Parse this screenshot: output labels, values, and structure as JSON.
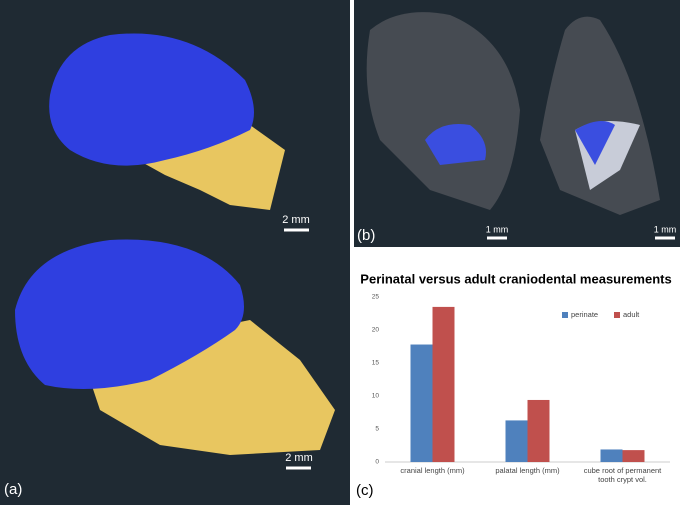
{
  "panels": [
    {
      "label": "(a)",
      "scale_bars": [
        "2 mm",
        "2 mm"
      ]
    },
    {
      "label": "(b)",
      "scale_bars": [
        "1 mm",
        "1 mm"
      ]
    },
    {
      "label": "(c)"
    }
  ],
  "chart_data": {
    "type": "bar",
    "title": "Perinatal versus adult craniodental measurements",
    "categories": [
      "cranial length (mm)",
      "palatal length (mm)",
      "cube root of permanent tooth crypt vol."
    ],
    "series": [
      {
        "name": "perinate",
        "color": "#4f81bd",
        "values": [
          17.8,
          6.3,
          1.9
        ]
      },
      {
        "name": "adult",
        "color": "#c0504d",
        "values": [
          23.5,
          9.4,
          1.8
        ]
      }
    ],
    "ylim": [
      0,
      25
    ],
    "yticks": [
      0,
      5,
      10,
      15,
      20,
      25
    ],
    "grid": false,
    "legend": "top-right"
  }
}
